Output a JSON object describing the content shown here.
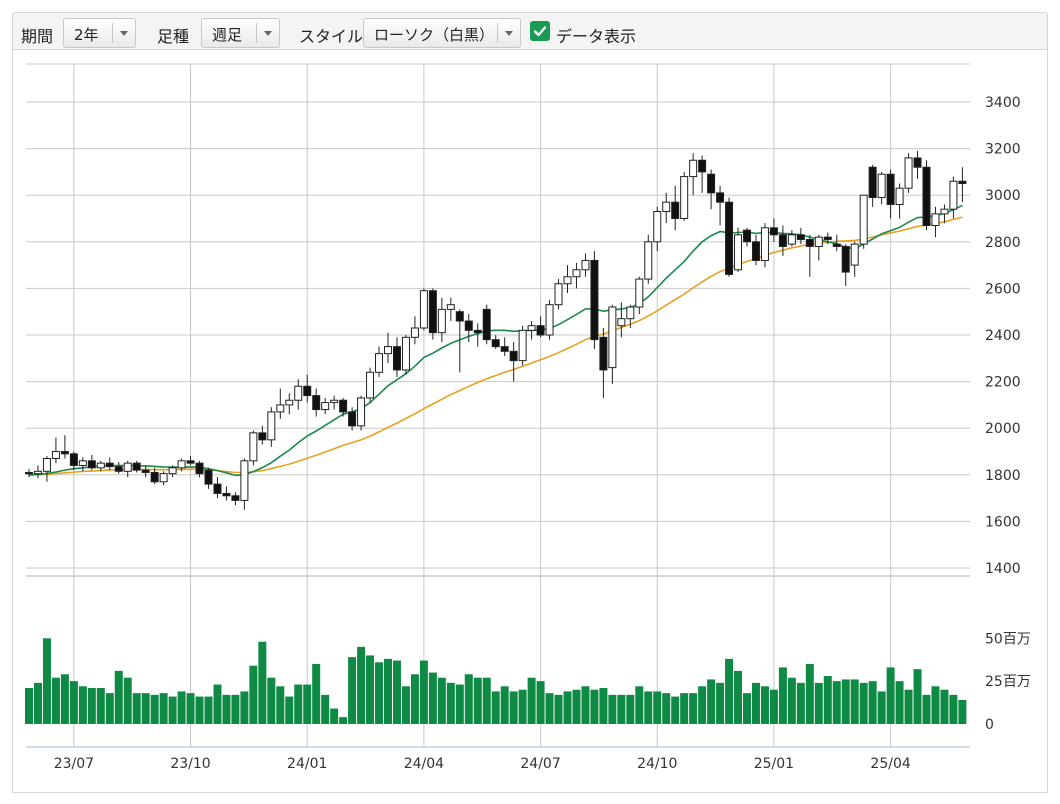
{
  "controls": {
    "period": {
      "label": "期間",
      "value": "2年"
    },
    "interval": {
      "label": "足種",
      "value": "週足"
    },
    "style": {
      "label": "スタイル",
      "value": "ローソク（白黒）"
    },
    "data_display": {
      "label": "データ表示",
      "checked": true
    }
  },
  "colors": {
    "up_body": "#ffffff",
    "down_body": "#111111",
    "candle_outline": "#222222",
    "ma_short": "#1a8a4a",
    "ma_long": "#e8a020",
    "volume": "#0f8a45",
    "grid": "#c8c8c8",
    "accent": "#1a9a55"
  },
  "chart_data": {
    "type": "candlestick",
    "price_axis": {
      "min": 1400,
      "max": 3400,
      "ticks": [
        1400,
        1600,
        1800,
        2000,
        2200,
        2400,
        2600,
        2800,
        3000,
        3200,
        3400
      ]
    },
    "volume_axis": {
      "max_value": 70,
      "unit": "百万",
      "ticks": [
        {
          "value": 0,
          "label": "0"
        },
        {
          "value": 25,
          "label": "25百万"
        },
        {
          "value": 50,
          "label": "50百万"
        }
      ]
    },
    "x_ticks": [
      {
        "index": 5,
        "label": "23/07"
      },
      {
        "index": 18,
        "label": "23/10"
      },
      {
        "index": 31,
        "label": "24/01"
      },
      {
        "index": 44,
        "label": "24/04"
      },
      {
        "index": 57,
        "label": "24/07"
      },
      {
        "index": 70,
        "label": "24/10"
      },
      {
        "index": 83,
        "label": "25/01"
      },
      {
        "index": 96,
        "label": "25/04"
      }
    ],
    "weeks": 105,
    "candles": [
      [
        1810,
        1825,
        1790,
        1805
      ],
      [
        1805,
        1840,
        1785,
        1815
      ],
      [
        1815,
        1880,
        1770,
        1870
      ],
      [
        1870,
        1960,
        1850,
        1900
      ],
      [
        1900,
        1970,
        1870,
        1890
      ],
      [
        1890,
        1900,
        1820,
        1840
      ],
      [
        1840,
        1875,
        1815,
        1860
      ],
      [
        1860,
        1885,
        1820,
        1830
      ],
      [
        1830,
        1860,
        1815,
        1850
      ],
      [
        1850,
        1875,
        1820,
        1835
      ],
      [
        1835,
        1855,
        1805,
        1815
      ],
      [
        1815,
        1860,
        1790,
        1850
      ],
      [
        1850,
        1860,
        1810,
        1820
      ],
      [
        1820,
        1840,
        1790,
        1810
      ],
      [
        1810,
        1830,
        1760,
        1770
      ],
      [
        1770,
        1815,
        1755,
        1805
      ],
      [
        1805,
        1840,
        1790,
        1830
      ],
      [
        1830,
        1870,
        1815,
        1860
      ],
      [
        1860,
        1880,
        1840,
        1850
      ],
      [
        1850,
        1860,
        1790,
        1805
      ],
      [
        1820,
        1830,
        1740,
        1760
      ],
      [
        1760,
        1790,
        1700,
        1720
      ],
      [
        1720,
        1750,
        1690,
        1710
      ],
      [
        1710,
        1725,
        1670,
        1690
      ],
      [
        1690,
        1870,
        1650,
        1860
      ],
      [
        1860,
        1990,
        1840,
        1980
      ],
      [
        1980,
        2010,
        1930,
        1950
      ],
      [
        1950,
        2090,
        1920,
        2070
      ],
      [
        2070,
        2170,
        2040,
        2100
      ],
      [
        2100,
        2150,
        2060,
        2120
      ],
      [
        2120,
        2210,
        2080,
        2180
      ],
      [
        2180,
        2230,
        2110,
        2140
      ],
      [
        2140,
        2170,
        2050,
        2080
      ],
      [
        2080,
        2130,
        2060,
        2110
      ],
      [
        2110,
        2140,
        2080,
        2120
      ],
      [
        2120,
        2130,
        2050,
        2070
      ],
      [
        2070,
        2090,
        1990,
        2010
      ],
      [
        2010,
        2140,
        1990,
        2130
      ],
      [
        2130,
        2260,
        2110,
        2240
      ],
      [
        2240,
        2350,
        2220,
        2320
      ],
      [
        2320,
        2410,
        2280,
        2350
      ],
      [
        2350,
        2390,
        2220,
        2250
      ],
      [
        2250,
        2400,
        2230,
        2390
      ],
      [
        2390,
        2480,
        2360,
        2430
      ],
      [
        2430,
        2600,
        2420,
        2590
      ],
      [
        2590,
        2600,
        2380,
        2410
      ],
      [
        2410,
        2560,
        2370,
        2510
      ],
      [
        2510,
        2560,
        2460,
        2530
      ],
      [
        2500,
        2510,
        2240,
        2460
      ],
      [
        2460,
        2490,
        2370,
        2420
      ],
      [
        2420,
        2450,
        2350,
        2410
      ],
      [
        2510,
        2530,
        2360,
        2380
      ],
      [
        2380,
        2400,
        2340,
        2350
      ],
      [
        2350,
        2390,
        2310,
        2330
      ],
      [
        2330,
        2370,
        2200,
        2290
      ],
      [
        2290,
        2440,
        2270,
        2420
      ],
      [
        2420,
        2460,
        2380,
        2440
      ],
      [
        2440,
        2480,
        2390,
        2400
      ],
      [
        2400,
        2550,
        2380,
        2530
      ],
      [
        2530,
        2640,
        2510,
        2620
      ],
      [
        2620,
        2700,
        2580,
        2650
      ],
      [
        2650,
        2710,
        2600,
        2680
      ],
      [
        2680,
        2750,
        2650,
        2720
      ],
      [
        2720,
        2760,
        2340,
        2380
      ],
      [
        2390,
        2430,
        2130,
        2250
      ],
      [
        2260,
        2530,
        2190,
        2520
      ],
      [
        2440,
        2540,
        2390,
        2470
      ],
      [
        2470,
        2530,
        2430,
        2520
      ],
      [
        2520,
        2650,
        2490,
        2640
      ],
      [
        2640,
        2830,
        2620,
        2800
      ],
      [
        2800,
        2950,
        2760,
        2930
      ],
      [
        2930,
        3010,
        2880,
        2970
      ],
      [
        2970,
        3040,
        2850,
        2900
      ],
      [
        2900,
        3100,
        2890,
        3080
      ],
      [
        3080,
        3180,
        3000,
        3150
      ],
      [
        3150,
        3170,
        3010,
        3100
      ],
      [
        3090,
        3110,
        2940,
        3010
      ],
      [
        3010,
        3040,
        2870,
        2970
      ],
      [
        2970,
        2990,
        2650,
        2660
      ],
      [
        2680,
        2860,
        2670,
        2830
      ],
      [
        2850,
        2860,
        2780,
        2800
      ],
      [
        2800,
        2830,
        2700,
        2720
      ],
      [
        2720,
        2880,
        2690,
        2860
      ],
      [
        2860,
        2900,
        2800,
        2830
      ],
      [
        2830,
        2870,
        2740,
        2780
      ],
      [
        2790,
        2850,
        2780,
        2830
      ],
      [
        2830,
        2860,
        2790,
        2810
      ],
      [
        2810,
        2830,
        2650,
        2780
      ],
      [
        2780,
        2830,
        2720,
        2820
      ],
      [
        2820,
        2840,
        2790,
        2810
      ],
      [
        2790,
        2830,
        2760,
        2780
      ],
      [
        2780,
        2790,
        2610,
        2670
      ],
      [
        2700,
        2800,
        2650,
        2790
      ],
      [
        2790,
        3000,
        2770,
        3000
      ],
      [
        3120,
        3130,
        2950,
        2990
      ],
      [
        2990,
        3100,
        2960,
        3090
      ],
      [
        3090,
        3110,
        2900,
        2960
      ],
      [
        2960,
        3050,
        2900,
        3030
      ],
      [
        3030,
        3180,
        3010,
        3160
      ],
      [
        3160,
        3190,
        3070,
        3120
      ],
      [
        3120,
        3150,
        2850,
        2870
      ],
      [
        2870,
        2950,
        2820,
        2920
      ],
      [
        2920,
        2960,
        2880,
        2940
      ],
      [
        2940,
        3080,
        2900,
        3060
      ],
      [
        3060,
        3120,
        2970,
        3050
      ]
    ],
    "volumes": [
      21,
      24,
      50,
      27,
      29,
      25,
      22,
      21,
      21,
      18,
      31,
      27,
      18,
      18,
      17,
      18,
      16,
      19,
      18,
      16,
      16,
      23,
      17,
      17,
      19,
      34,
      48,
      27,
      22,
      16,
      23,
      23,
      35,
      17,
      9,
      4,
      39,
      45,
      40,
      36,
      38,
      37,
      22,
      29,
      37,
      30,
      27,
      24,
      23,
      29,
      27,
      27,
      19,
      22,
      19,
      20,
      27,
      25,
      18,
      17,
      19,
      20,
      22,
      20,
      21,
      17,
      17,
      17,
      22,
      19,
      19,
      18,
      16,
      18,
      18,
      22,
      26,
      24,
      38,
      31,
      18,
      24,
      22,
      20,
      33,
      27,
      24,
      35,
      24,
      28,
      25,
      26,
      26,
      24,
      25,
      19,
      33,
      25,
      20,
      32,
      17,
      22,
      20,
      17,
      14
    ],
    "ma_short": [
      1800,
      1802,
      1806,
      1812,
      1820,
      1826,
      1830,
      1834,
      1838,
      1840,
      1840,
      1840,
      1839,
      1838,
      1836,
      1834,
      1833,
      1833,
      1834,
      1832,
      1826,
      1818,
      1808,
      1798,
      1800,
      1814,
      1830,
      1852,
      1880,
      1906,
      1938,
      1966,
      1988,
      2012,
      2036,
      2060,
      2070,
      2084,
      2110,
      2146,
      2182,
      2208,
      2234,
      2266,
      2304,
      2322,
      2344,
      2364,
      2380,
      2394,
      2406,
      2418,
      2420,
      2420,
      2416,
      2418,
      2420,
      2422,
      2428,
      2444,
      2466,
      2488,
      2512,
      2512,
      2502,
      2508,
      2512,
      2518,
      2534,
      2564,
      2604,
      2644,
      2680,
      2716,
      2760,
      2800,
      2826,
      2844,
      2838,
      2840,
      2842,
      2836,
      2840,
      2840,
      2836,
      2834,
      2830,
      2820,
      2810,
      2800,
      2792,
      2776,
      2770,
      2790,
      2812,
      2834,
      2848,
      2862,
      2884,
      2904,
      2906,
      2912,
      2922,
      2938,
      2956
    ],
    "ma_long": [
      1798,
      1800,
      1802,
      1805,
      1808,
      1811,
      1814,
      1816,
      1818,
      1820,
      1821,
      1822,
      1823,
      1823,
      1822,
      1822,
      1822,
      1823,
      1824,
      1823,
      1821,
      1818,
      1814,
      1810,
      1810,
      1813,
      1818,
      1826,
      1836,
      1846,
      1858,
      1871,
      1884,
      1898,
      1912,
      1926,
      1938,
      1950,
      1966,
      1984,
      2004,
      2022,
      2042,
      2062,
      2084,
      2104,
      2124,
      2144,
      2162,
      2180,
      2196,
      2212,
      2226,
      2240,
      2252,
      2266,
      2280,
      2294,
      2308,
      2324,
      2342,
      2360,
      2380,
      2394,
      2404,
      2418,
      2432,
      2446,
      2462,
      2482,
      2504,
      2528,
      2552,
      2576,
      2602,
      2628,
      2652,
      2672,
      2686,
      2702,
      2716,
      2728,
      2742,
      2754,
      2764,
      2774,
      2782,
      2788,
      2794,
      2798,
      2802,
      2804,
      2806,
      2812,
      2820,
      2830,
      2838,
      2846,
      2856,
      2866,
      2872,
      2878,
      2886,
      2896,
      2906
    ]
  }
}
